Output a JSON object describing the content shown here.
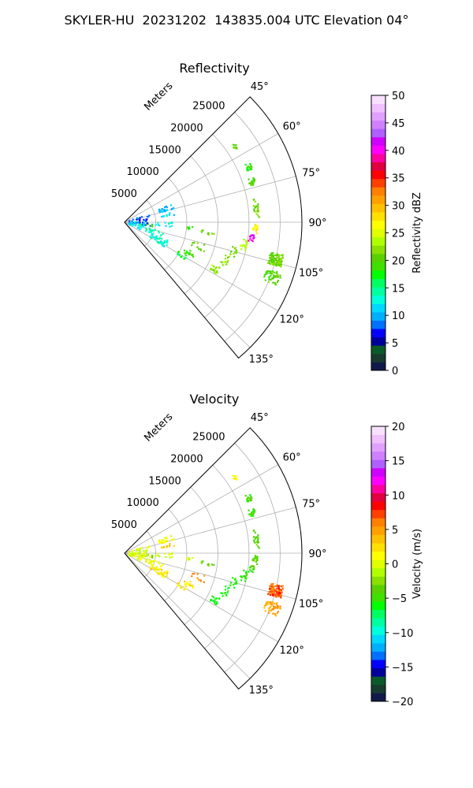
{
  "figure": {
    "title": "SKYLER-HU  20231202  143835.004 UTC Elevation 04°"
  },
  "chart_data": [
    {
      "type": "polar-sector",
      "title": "Reflectivity",
      "radial_label": "Meters",
      "radial_ticks": [
        5000,
        10000,
        15000,
        20000,
        25000
      ],
      "radial_tick_labels": [
        "5000",
        "10000",
        "15000",
        "20000",
        "25000"
      ],
      "radial_max": 28500,
      "angle_range_deg": [
        45,
        140
      ],
      "angle_ticks": [
        45,
        60,
        75,
        90,
        105,
        120,
        135
      ],
      "angle_tick_labels": [
        "45°",
        "60°",
        "75°",
        "90°",
        "105°",
        "120°",
        "135°"
      ],
      "grid": true,
      "colorbar": {
        "label": "Reflectivity dBZ",
        "min": 0,
        "max": 50,
        "ticks": [
          0,
          5,
          10,
          15,
          20,
          25,
          30,
          35,
          40,
          45,
          50
        ],
        "tick_labels": [
          "0",
          "5",
          "10",
          "15",
          "20",
          "25",
          "30",
          "35",
          "40",
          "45",
          "50"
        ],
        "colors": [
          "#101a4a",
          "#173b2e",
          "#0b5a2a",
          "#00009a",
          "#0000ff",
          "#0070ff",
          "#00b0ff",
          "#00d8ff",
          "#00ffdd",
          "#00ffa0",
          "#00ff60",
          "#00ff00",
          "#40e000",
          "#5ad000",
          "#8ae000",
          "#b0ff00",
          "#e0ff00",
          "#ffff00",
          "#ffe000",
          "#ffc000",
          "#ffa000",
          "#ff8000",
          "#ff4000",
          "#ff0000",
          "#e00040",
          "#ff00a0",
          "#ff00ff",
          "#d000ff",
          "#b060ff",
          "#d080ff",
          "#e0a0ff",
          "#f0c0ff",
          "#f8e0ff"
        ]
      },
      "clusters": [
        {
          "az": 55.5,
          "r": 21500,
          "dr": 300,
          "daz": 1.2,
          "n": 10,
          "value": 20
        },
        {
          "az": 66,
          "r": 21800,
          "dr": 500,
          "daz": 1.5,
          "n": 16,
          "value": 18
        },
        {
          "az": 72.5,
          "r": 21500,
          "dr": 500,
          "daz": 2.0,
          "n": 16,
          "value": 20
        },
        {
          "az": 84,
          "r": 21300,
          "dr": 400,
          "daz": 4.0,
          "n": 22,
          "value": 21
        },
        {
          "az": 93,
          "r": 21000,
          "dr": 400,
          "daz": 2.0,
          "n": 16,
          "value": 27
        },
        {
          "az": 97,
          "r": 20500,
          "dr": 500,
          "daz": 1.5,
          "n": 14,
          "value": 40
        },
        {
          "az": 100.5,
          "r": 19500,
          "dr": 500,
          "daz": 2.5,
          "n": 16,
          "value": 24
        },
        {
          "az": 105,
          "r": 18200,
          "dr": 500,
          "daz": 2.5,
          "n": 14,
          "value": 21
        },
        {
          "az": 111,
          "r": 17200,
          "dr": 600,
          "daz": 3.0,
          "n": 14,
          "value": 22
        },
        {
          "az": 117.5,
          "r": 16200,
          "dr": 700,
          "daz": 3.0,
          "n": 18,
          "value": 22
        },
        {
          "az": 103.8,
          "r": 25000,
          "dr": 1100,
          "daz": 2.2,
          "n": 90,
          "value": 21
        },
        {
          "az": 110,
          "r": 25300,
          "dr": 1300,
          "daz": 2.5,
          "n": 45,
          "value": 20
        },
        {
          "az": 97,
          "r": 13500,
          "dr": 1200,
          "daz": 1.5,
          "n": 10,
          "value": 21
        },
        {
          "az": 95,
          "r": 10500,
          "dr": 500,
          "daz": 1.2,
          "n": 5,
          "value": 19
        },
        {
          "az": 108,
          "r": 12500,
          "dr": 1200,
          "daz": 2.5,
          "n": 10,
          "value": 21
        },
        {
          "az": 115,
          "r": 11500,
          "dr": 1000,
          "daz": 2.5,
          "n": 14,
          "value": 19
        },
        {
          "az": 120,
          "r": 10500,
          "dr": 900,
          "daz": 2.0,
          "n": 12,
          "value": 17
        },
        {
          "az": 117,
          "r": 6200,
          "dr": 1500,
          "daz": 5.0,
          "n": 40,
          "value": 13
        },
        {
          "az": 108,
          "r": 5000,
          "dr": 1500,
          "daz": 6.0,
          "n": 20,
          "value": 14
        },
        {
          "az": 93,
          "r": 6000,
          "dr": 2000,
          "daz": 3.0,
          "n": 14,
          "value": 13
        },
        {
          "az": 96,
          "r": 3500,
          "dr": 1500,
          "daz": 3.0,
          "n": 10,
          "value": 20
        },
        {
          "az": 72,
          "r": 7000,
          "dr": 1200,
          "daz": 3.0,
          "n": 25,
          "value": 10
        },
        {
          "az": 80,
          "r": 7000,
          "dr": 1200,
          "daz": 2.0,
          "n": 10,
          "value": 11
        },
        {
          "az": 85,
          "r": 2500,
          "dr": 1800,
          "daz": 15.0,
          "n": 40,
          "value": 8
        },
        {
          "az": 100,
          "r": 2000,
          "dr": 1500,
          "daz": 15.0,
          "n": 30,
          "value": 12
        }
      ]
    },
    {
      "type": "polar-sector",
      "title": "Velocity",
      "radial_label": "Meters",
      "radial_ticks": [
        5000,
        10000,
        15000,
        20000,
        25000
      ],
      "radial_tick_labels": [
        "5000",
        "10000",
        "15000",
        "20000",
        "25000"
      ],
      "radial_max": 28500,
      "angle_range_deg": [
        45,
        140
      ],
      "angle_ticks": [
        45,
        60,
        75,
        90,
        105,
        120,
        135
      ],
      "angle_tick_labels": [
        "45°",
        "60°",
        "75°",
        "90°",
        "105°",
        "120°",
        "135°"
      ],
      "grid": true,
      "colorbar": {
        "label": "Velocity (m/s)",
        "min": -20,
        "max": 20,
        "ticks": [
          -20,
          -15,
          -10,
          -5,
          0,
          5,
          10,
          15,
          20
        ],
        "tick_labels": [
          "−20",
          "−15",
          "−10",
          "−5",
          "0",
          "5",
          "10",
          "15",
          "20"
        ],
        "colors": [
          "#101a4a",
          "#173b2e",
          "#0b5a2a",
          "#00009a",
          "#0000ff",
          "#0070ff",
          "#00b0ff",
          "#00d8ff",
          "#00ffdd",
          "#00ffa0",
          "#00ff60",
          "#00ff00",
          "#40e000",
          "#5ad000",
          "#8ae000",
          "#b0ff00",
          "#e0ff00",
          "#ffff00",
          "#ffe000",
          "#ffc000",
          "#ffa000",
          "#ff8000",
          "#ff4000",
          "#ff0000",
          "#e00040",
          "#ff00a0",
          "#ff00ff",
          "#d000ff",
          "#b060ff",
          "#d080ff",
          "#e0a0ff",
          "#f0c0ff",
          "#f8e0ff"
        ]
      },
      "clusters": [
        {
          "az": 55.5,
          "r": 21500,
          "dr": 300,
          "daz": 1.2,
          "n": 10,
          "value": 1
        },
        {
          "az": 66,
          "r": 21800,
          "dr": 500,
          "daz": 1.5,
          "n": 16,
          "value": -5
        },
        {
          "az": 72.5,
          "r": 21500,
          "dr": 500,
          "daz": 2.0,
          "n": 16,
          "value": -5
        },
        {
          "az": 84,
          "r": 21300,
          "dr": 400,
          "daz": 4.0,
          "n": 22,
          "value": -4
        },
        {
          "az": 93,
          "r": 21000,
          "dr": 400,
          "daz": 2.0,
          "n": 16,
          "value": -4
        },
        {
          "az": 97,
          "r": 20500,
          "dr": 500,
          "daz": 1.5,
          "n": 14,
          "value": -5
        },
        {
          "az": 100.5,
          "r": 19500,
          "dr": 500,
          "daz": 2.5,
          "n": 16,
          "value": -5
        },
        {
          "az": 105,
          "r": 18200,
          "dr": 500,
          "daz": 2.5,
          "n": 14,
          "value": -6
        },
        {
          "az": 111,
          "r": 17200,
          "dr": 600,
          "daz": 3.0,
          "n": 14,
          "value": -6
        },
        {
          "az": 117.5,
          "r": 16200,
          "dr": 700,
          "daz": 3.0,
          "n": 18,
          "value": -6
        },
        {
          "az": 103.8,
          "r": 25000,
          "dr": 1100,
          "daz": 2.2,
          "n": 90,
          "value": 7
        },
        {
          "az": 110,
          "r": 25300,
          "dr": 1300,
          "daz": 2.5,
          "n": 45,
          "value": 5
        },
        {
          "az": 97,
          "r": 13500,
          "dr": 1200,
          "daz": 1.5,
          "n": 10,
          "value": -4
        },
        {
          "az": 95,
          "r": 10500,
          "dr": 500,
          "daz": 1.2,
          "n": 5,
          "value": 0
        },
        {
          "az": 108,
          "r": 12500,
          "dr": 1200,
          "daz": 2.5,
          "n": 10,
          "value": 6
        },
        {
          "az": 115,
          "r": 11500,
          "dr": 1000,
          "daz": 2.5,
          "n": 14,
          "value": 2
        },
        {
          "az": 120,
          "r": 10500,
          "dr": 900,
          "daz": 2.0,
          "n": 12,
          "value": 2
        },
        {
          "az": 117,
          "r": 6200,
          "dr": 1500,
          "daz": 5.0,
          "n": 40,
          "value": 2
        },
        {
          "az": 108,
          "r": 5000,
          "dr": 1500,
          "daz": 6.0,
          "n": 20,
          "value": 1
        },
        {
          "az": 93,
          "r": 6000,
          "dr": 2000,
          "daz": 3.0,
          "n": 14,
          "value": 0
        },
        {
          "az": 96,
          "r": 3500,
          "dr": 1500,
          "daz": 3.0,
          "n": 10,
          "value": -2
        },
        {
          "az": 72,
          "r": 7000,
          "dr": 1200,
          "daz": 3.0,
          "n": 25,
          "value": 1
        },
        {
          "az": 80,
          "r": 7000,
          "dr": 1200,
          "daz": 2.0,
          "n": 10,
          "value": 3
        },
        {
          "az": 85,
          "r": 2500,
          "dr": 1800,
          "daz": 15.0,
          "n": 40,
          "value": 0
        },
        {
          "az": 100,
          "r": 2000,
          "dr": 1500,
          "daz": 15.0,
          "n": 30,
          "value": 0
        }
      ]
    }
  ]
}
